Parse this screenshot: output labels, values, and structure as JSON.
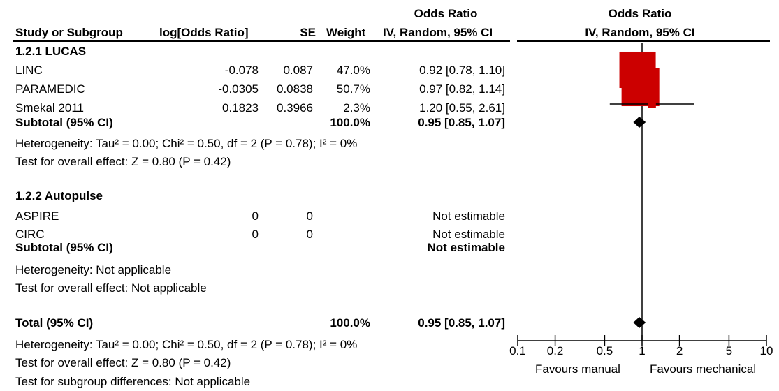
{
  "header": {
    "or_title_left": "Odds Ratio",
    "or_title_right": "Odds Ratio",
    "col_study": "Study or Subgroup",
    "col_logor": "log[Odds Ratio]",
    "col_se": "SE",
    "col_weight": "Weight",
    "col_ci": "IV, Random, 95% CI",
    "col_plot": "IV, Random, 95% CI"
  },
  "groups": [
    {
      "title": "1.2.1 LUCAS",
      "studies": [
        {
          "name": "LINC",
          "logor": "-0.078",
          "se": "0.087",
          "weight": "47.0%",
          "ci": "0.92 [0.78, 1.10]"
        },
        {
          "name": "PARAMEDIC",
          "logor": "-0.0305",
          "se": "0.0838",
          "weight": "50.7%",
          "ci": "0.97 [0.82, 1.14]"
        },
        {
          "name": "Smekal 2011",
          "logor": "0.1823",
          "se": "0.3966",
          "weight": "2.3%",
          "ci": "1.20 [0.55, 2.61]"
        }
      ],
      "subtotal": {
        "label": "Subtotal (95% CI)",
        "weight": "100.0%",
        "ci": "0.95 [0.85, 1.07]"
      },
      "heterogeneity": "Heterogeneity: Tau² = 0.00; Chi² = 0.50, df = 2 (P = 0.78); I² = 0%",
      "overall": "Test for overall effect: Z = 0.80 (P = 0.42)"
    },
    {
      "title": "1.2.2 Autopulse",
      "studies": [
        {
          "name": "ASPIRE",
          "logor": "0",
          "se": "0",
          "weight": "",
          "ci": "Not estimable"
        },
        {
          "name": "CIRC",
          "logor": "0",
          "se": "0",
          "weight": "",
          "ci": "Not estimable"
        }
      ],
      "subtotal": {
        "label": "Subtotal (95% CI)",
        "weight": "",
        "ci": "Not estimable"
      },
      "heterogeneity": "Heterogeneity: Not applicable",
      "overall": "Test for overall effect: Not applicable"
    }
  ],
  "total": {
    "label": "Total (95% CI)",
    "weight": "100.0%",
    "ci": "0.95 [0.85, 1.07]",
    "heterogeneity": "Heterogeneity: Tau² = 0.00; Chi² = 0.50, df = 2 (P = 0.78); I² = 0%",
    "overall": "Test for overall effect: Z = 0.80 (P = 0.42)",
    "subgroup": "Test for subgroup differences: Not applicable"
  },
  "axis_labels": {
    "favours_left": "Favours manual",
    "favours_right": "Favours mechanical"
  },
  "colors": {
    "study_marker": "#cc0000",
    "diamond": "#000000",
    "line": "#000000"
  },
  "chart_data": {
    "type": "forest",
    "x_scale": "log",
    "xlim": [
      0.1,
      10
    ],
    "ticks": [
      {
        "value": 0.1,
        "label": "0.1"
      },
      {
        "value": 0.2,
        "label": "0.2"
      },
      {
        "value": 0.5,
        "label": "0.5"
      },
      {
        "value": 1,
        "label": "1"
      },
      {
        "value": 2,
        "label": "2"
      },
      {
        "value": 5,
        "label": "5"
      },
      {
        "value": 10,
        "label": "10"
      }
    ],
    "null_line": 1,
    "studies": [
      {
        "name": "LINC",
        "or": 0.92,
        "lo": 0.78,
        "hi": 1.1,
        "weight": 47.0
      },
      {
        "name": "PARAMEDIC",
        "or": 0.97,
        "lo": 0.82,
        "hi": 1.14,
        "weight": 50.7
      },
      {
        "name": "Smekal 2011",
        "or": 1.2,
        "lo": 0.55,
        "hi": 2.61,
        "weight": 2.3
      }
    ],
    "summaries": [
      {
        "name": "Subtotal (95% CI)",
        "or": 0.95,
        "lo": 0.85,
        "hi": 1.07
      },
      {
        "name": "Total (95% CI)",
        "or": 0.95,
        "lo": 0.85,
        "hi": 1.07
      }
    ]
  }
}
